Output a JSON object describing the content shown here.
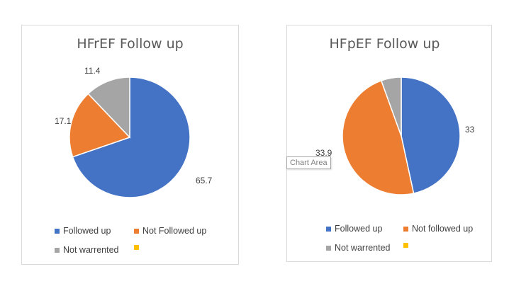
{
  "chart_data": [
    {
      "type": "pie",
      "title": "HFrEF Follow up",
      "categories": [
        "Followed up",
        "Not Followed up",
        "Not warrented",
        ""
      ],
      "values": [
        65.7,
        17.1,
        11.4,
        0
      ],
      "labels": [
        "65.7",
        "17.1",
        "11.4",
        ""
      ],
      "colors": [
        "#4472c4",
        "#ed7d31",
        "#a5a5a5",
        "#ffc000"
      ],
      "legend_position": "bottom"
    },
    {
      "type": "pie",
      "title": "HFpEF Follow up",
      "categories": [
        "Followed up",
        "Not followed up",
        "Not warrented",
        ""
      ],
      "values": [
        33,
        33.9,
        3.9,
        0
      ],
      "labels": [
        "33",
        "33.9",
        "",
        ""
      ],
      "colors": [
        "#4472c4",
        "#ed7d31",
        "#a5a5a5",
        "#ffc000"
      ],
      "legend_position": "bottom"
    }
  ],
  "tooltip": "Chart Area"
}
